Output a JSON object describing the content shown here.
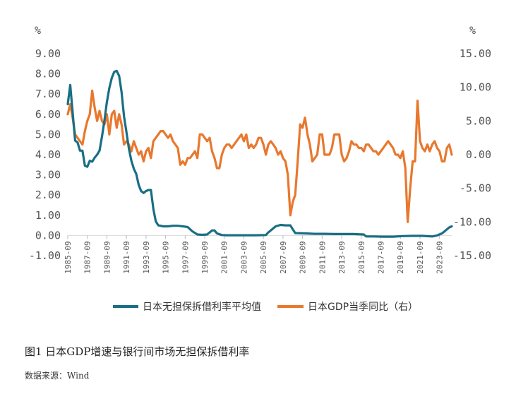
{
  "caption": "图1 日本GDP增速与银行间市场无担保拆借利率",
  "source": "数据来源：Wind",
  "chart_data": {
    "type": "line",
    "left_unit": "%",
    "right_unit": "%",
    "left_ylim": [
      -1.0,
      9.0
    ],
    "left_ticks": [
      "9.00",
      "8.00",
      "7.00",
      "6.00",
      "5.00",
      "4.00",
      "3.00",
      "2.00",
      "1.00",
      "0.00",
      "-1.00"
    ],
    "left_tick_values": [
      9,
      8,
      7,
      6,
      5,
      4,
      3,
      2,
      1,
      0,
      -1
    ],
    "right_ylim": [
      -15.0,
      15.0
    ],
    "right_ticks": [
      "15.00",
      "10.00",
      "5.00",
      "0.00",
      "-5.00",
      "-10.00",
      "-15.00"
    ],
    "right_tick_values": [
      15,
      10,
      5,
      0,
      -5,
      -10,
      -15
    ],
    "x_start": 1985.75,
    "x_end": 2025.0,
    "x_tick_labels": [
      "1985-09",
      "1987-09",
      "1989-09",
      "1991-09",
      "1993-09",
      "1995-09",
      "1997-09",
      "1999-09",
      "2001-09",
      "2003-09",
      "2005-09",
      "2007-09",
      "2009-09",
      "2011-09",
      "2013-09",
      "2015-09",
      "2017-09",
      "2019-09",
      "2021-09",
      "2023-09"
    ],
    "x_tick_values": [
      1985.75,
      1987.75,
      1989.75,
      1991.75,
      1993.75,
      1995.75,
      1997.75,
      1999.75,
      2001.75,
      2003.75,
      2005.75,
      2007.75,
      2009.75,
      2011.75,
      2013.75,
      2015.75,
      2017.75,
      2019.75,
      2021.75,
      2023.75
    ],
    "grid": false,
    "legend_position": "bottom",
    "series": [
      {
        "name": "日本无担保拆借利率平均值",
        "axis": "left",
        "color": "#1a6e84",
        "points": [
          [
            1985.75,
            6.5
          ],
          [
            1986.0,
            7.45
          ],
          [
            1986.25,
            6.1
          ],
          [
            1986.5,
            4.7
          ],
          [
            1986.75,
            4.6
          ],
          [
            1987.0,
            4.2
          ],
          [
            1987.25,
            4.2
          ],
          [
            1987.5,
            3.45
          ],
          [
            1987.75,
            3.4
          ],
          [
            1988.0,
            3.7
          ],
          [
            1988.25,
            3.65
          ],
          [
            1988.5,
            3.85
          ],
          [
            1988.75,
            4.0
          ],
          [
            1989.0,
            4.2
          ],
          [
            1989.25,
            4.9
          ],
          [
            1989.5,
            5.7
          ],
          [
            1989.75,
            6.6
          ],
          [
            1990.0,
            7.3
          ],
          [
            1990.25,
            7.8
          ],
          [
            1990.5,
            8.1
          ],
          [
            1990.75,
            8.15
          ],
          [
            1991.0,
            7.9
          ],
          [
            1991.25,
            7.1
          ],
          [
            1991.5,
            5.9
          ],
          [
            1991.75,
            5.1
          ],
          [
            1992.0,
            4.3
          ],
          [
            1992.25,
            3.7
          ],
          [
            1992.5,
            3.3
          ],
          [
            1992.75,
            3.05
          ],
          [
            1993.0,
            2.5
          ],
          [
            1993.25,
            2.2
          ],
          [
            1993.5,
            2.1
          ],
          [
            1993.75,
            2.2
          ],
          [
            1994.0,
            2.25
          ],
          [
            1994.25,
            2.25
          ],
          [
            1994.5,
            1.3
          ],
          [
            1994.75,
            0.7
          ],
          [
            1995.0,
            0.5
          ],
          [
            1995.5,
            0.45
          ],
          [
            1996.0,
            0.45
          ],
          [
            1996.5,
            0.48
          ],
          [
            1997.0,
            0.48
          ],
          [
            1997.5,
            0.45
          ],
          [
            1998.0,
            0.42
          ],
          [
            1998.5,
            0.2
          ],
          [
            1999.0,
            0.05
          ],
          [
            1999.5,
            0.03
          ],
          [
            2000.0,
            0.05
          ],
          [
            2000.5,
            0.25
          ],
          [
            2000.75,
            0.25
          ],
          [
            2001.0,
            0.1
          ],
          [
            2001.5,
            0.02
          ],
          [
            2002.0,
            0.01
          ],
          [
            2003.0,
            0.01
          ],
          [
            2004.0,
            0.01
          ],
          [
            2005.0,
            0.01
          ],
          [
            2006.0,
            0.02
          ],
          [
            2006.25,
            0.15
          ],
          [
            2006.5,
            0.25
          ],
          [
            2007.0,
            0.45
          ],
          [
            2007.5,
            0.52
          ],
          [
            2008.0,
            0.5
          ],
          [
            2008.5,
            0.5
          ],
          [
            2008.75,
            0.3
          ],
          [
            2009.0,
            0.12
          ],
          [
            2010.0,
            0.1
          ],
          [
            2011.0,
            0.08
          ],
          [
            2012.0,
            0.08
          ],
          [
            2013.0,
            0.07
          ],
          [
            2014.0,
            0.07
          ],
          [
            2015.0,
            0.07
          ],
          [
            2016.0,
            0.05
          ],
          [
            2016.25,
            -0.05
          ],
          [
            2017.0,
            -0.05
          ],
          [
            2018.0,
            -0.06
          ],
          [
            2019.0,
            -0.06
          ],
          [
            2020.0,
            -0.03
          ],
          [
            2021.0,
            -0.02
          ],
          [
            2022.0,
            -0.02
          ],
          [
            2023.0,
            -0.05
          ],
          [
            2023.5,
            0.0
          ],
          [
            2024.0,
            0.1
          ],
          [
            2024.25,
            0.2
          ],
          [
            2024.5,
            0.3
          ],
          [
            2024.75,
            0.4
          ],
          [
            2025.0,
            0.45
          ]
        ]
      },
      {
        "name": "日本GDP当季同比（右）",
        "axis": "right",
        "color": "#e8782e",
        "points": [
          [
            1985.75,
            6.0
          ],
          [
            1986.0,
            7.5
          ],
          [
            1986.25,
            5.5
          ],
          [
            1986.5,
            3.0
          ],
          [
            1986.75,
            2.5
          ],
          [
            1987.0,
            2.0
          ],
          [
            1987.25,
            1.5
          ],
          [
            1987.5,
            3.5
          ],
          [
            1987.75,
            5.0
          ],
          [
            1988.0,
            6.0
          ],
          [
            1988.25,
            9.5
          ],
          [
            1988.5,
            7.0
          ],
          [
            1988.75,
            5.0
          ],
          [
            1989.0,
            6.5
          ],
          [
            1989.25,
            5.0
          ],
          [
            1989.5,
            4.5
          ],
          [
            1989.75,
            6.0
          ],
          [
            1990.0,
            3.0
          ],
          [
            1990.25,
            6.0
          ],
          [
            1990.5,
            6.5
          ],
          [
            1990.75,
            4.0
          ],
          [
            1991.0,
            6.0
          ],
          [
            1991.25,
            4.5
          ],
          [
            1991.5,
            1.5
          ],
          [
            1991.75,
            2.0
          ],
          [
            1992.0,
            1.5
          ],
          [
            1992.25,
            0.5
          ],
          [
            1992.5,
            2.0
          ],
          [
            1992.75,
            1.0
          ],
          [
            1993.0,
            0.0
          ],
          [
            1993.25,
            0.5
          ],
          [
            1993.5,
            -1.0
          ],
          [
            1993.75,
            0.5
          ],
          [
            1994.0,
            1.0
          ],
          [
            1994.25,
            -0.5
          ],
          [
            1994.5,
            2.0
          ],
          [
            1994.75,
            2.5
          ],
          [
            1995.0,
            3.0
          ],
          [
            1995.25,
            3.5
          ],
          [
            1995.5,
            3.5
          ],
          [
            1995.75,
            3.0
          ],
          [
            1996.0,
            2.5
          ],
          [
            1996.25,
            3.0
          ],
          [
            1996.5,
            2.0
          ],
          [
            1996.75,
            1.5
          ],
          [
            1997.0,
            1.0
          ],
          [
            1997.25,
            -1.5
          ],
          [
            1997.5,
            -1.0
          ],
          [
            1997.75,
            -1.5
          ],
          [
            1998.0,
            -0.5
          ],
          [
            1998.25,
            -0.5
          ],
          [
            1998.5,
            0.0
          ],
          [
            1998.75,
            0.5
          ],
          [
            1999.0,
            -0.5
          ],
          [
            1999.25,
            3.0
          ],
          [
            1999.5,
            3.0
          ],
          [
            1999.75,
            2.5
          ],
          [
            2000.0,
            2.0
          ],
          [
            2000.25,
            2.5
          ],
          [
            2000.5,
            0.5
          ],
          [
            2000.75,
            -0.5
          ],
          [
            2001.0,
            -2.0
          ],
          [
            2001.25,
            -2.0
          ],
          [
            2001.5,
            0.0
          ],
          [
            2001.75,
            1.0
          ],
          [
            2002.0,
            1.5
          ],
          [
            2002.25,
            1.5
          ],
          [
            2002.5,
            1.0
          ],
          [
            2002.75,
            1.5
          ],
          [
            2003.0,
            2.0
          ],
          [
            2003.25,
            2.5
          ],
          [
            2003.5,
            3.0
          ],
          [
            2003.75,
            2.0
          ],
          [
            2004.0,
            3.0
          ],
          [
            2004.25,
            1.0
          ],
          [
            2004.5,
            1.5
          ],
          [
            2004.75,
            1.0
          ],
          [
            2005.0,
            1.5
          ],
          [
            2005.25,
            2.5
          ],
          [
            2005.5,
            2.5
          ],
          [
            2005.75,
            1.5
          ],
          [
            2006.0,
            0.0
          ],
          [
            2006.25,
            1.5
          ],
          [
            2006.5,
            2.0
          ],
          [
            2006.75,
            1.5
          ],
          [
            2007.0,
            1.0
          ],
          [
            2007.25,
            0.0
          ],
          [
            2007.5,
            0.5
          ],
          [
            2007.75,
            -0.5
          ],
          [
            2008.0,
            -1.0
          ],
          [
            2008.25,
            -3.0
          ],
          [
            2008.5,
            -9.0
          ],
          [
            2008.75,
            -7.0
          ],
          [
            2009.0,
            -6.0
          ],
          [
            2009.25,
            -1.0
          ],
          [
            2009.5,
            4.5
          ],
          [
            2009.75,
            4.0
          ],
          [
            2010.0,
            5.5
          ],
          [
            2010.25,
            3.0
          ],
          [
            2010.5,
            1.5
          ],
          [
            2010.75,
            -1.0
          ],
          [
            2011.0,
            -0.5
          ],
          [
            2011.25,
            0.0
          ],
          [
            2011.5,
            3.0
          ],
          [
            2011.75,
            3.0
          ],
          [
            2012.0,
            0.0
          ],
          [
            2012.25,
            0.0
          ],
          [
            2012.5,
            0.0
          ],
          [
            2012.75,
            1.0
          ],
          [
            2013.0,
            3.0
          ],
          [
            2013.25,
            3.0
          ],
          [
            2013.5,
            3.0
          ],
          [
            2013.75,
            0.0
          ],
          [
            2014.0,
            -1.0
          ],
          [
            2014.25,
            -0.5
          ],
          [
            2014.5,
            0.5
          ],
          [
            2014.75,
            2.0
          ],
          [
            2015.0,
            1.5
          ],
          [
            2015.25,
            1.5
          ],
          [
            2015.5,
            1.0
          ],
          [
            2015.75,
            1.0
          ],
          [
            2016.0,
            0.5
          ],
          [
            2016.25,
            1.5
          ],
          [
            2016.5,
            1.5
          ],
          [
            2016.75,
            1.0
          ],
          [
            2017.0,
            0.5
          ],
          [
            2017.25,
            0.5
          ],
          [
            2017.5,
            0.0
          ],
          [
            2017.75,
            0.5
          ],
          [
            2018.0,
            1.0
          ],
          [
            2018.25,
            1.5
          ],
          [
            2018.5,
            2.0
          ],
          [
            2018.75,
            1.5
          ],
          [
            2019.0,
            1.0
          ],
          [
            2019.25,
            0.0
          ],
          [
            2019.5,
            0.0
          ],
          [
            2019.75,
            -0.5
          ],
          [
            2020.0,
            0.5
          ],
          [
            2020.25,
            -2.0
          ],
          [
            2020.5,
            -10.0
          ],
          [
            2020.75,
            -5.0
          ],
          [
            2021.0,
            -1.0
          ],
          [
            2021.25,
            -1.0
          ],
          [
            2021.5,
            8.0
          ],
          [
            2021.75,
            2.0
          ],
          [
            2022.0,
            1.0
          ],
          [
            2022.25,
            0.5
          ],
          [
            2022.5,
            1.5
          ],
          [
            2022.75,
            0.5
          ],
          [
            2023.0,
            1.5
          ],
          [
            2023.25,
            2.0
          ],
          [
            2023.5,
            1.0
          ],
          [
            2023.75,
            0.5
          ],
          [
            2024.0,
            -1.0
          ],
          [
            2024.25,
            -1.0
          ],
          [
            2024.5,
            1.0
          ],
          [
            2024.75,
            1.5
          ],
          [
            2025.0,
            0.0
          ]
        ]
      }
    ]
  }
}
